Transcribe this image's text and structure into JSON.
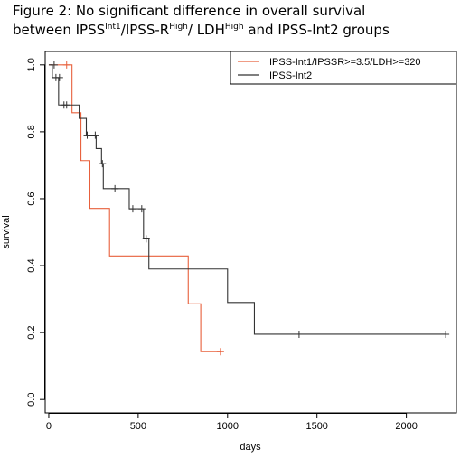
{
  "figure": {
    "title_line1": "Figure 2: No significant difference in overall survival",
    "title_line2": {
      "a": "between IPSS",
      "sup_a": "Int1",
      "b": "/IPSS-R",
      "sup_b": "High",
      "c": "/ LDH",
      "sup_c": "High",
      "d": " and IPSS-Int2 groups"
    }
  },
  "chart_data": {
    "type": "line",
    "subtype": "kaplan-meier step",
    "xlabel": "days",
    "ylabel": "survival",
    "xlim": [
      -20,
      2280
    ],
    "ylim": [
      -0.04,
      1.04
    ],
    "x_ticks": [
      0,
      500,
      1000,
      1500,
      2000
    ],
    "y_ticks": [
      0.0,
      0.2,
      0.4,
      0.6,
      0.8,
      1.0
    ],
    "legend_position": "top-right",
    "grid": false,
    "series": [
      {
        "name": "IPSS-Int1/IPSSR>=3.5/LDH>=320",
        "color": "#e8603c",
        "steps": [
          [
            0,
            1.0
          ],
          [
            130,
            0.857
          ],
          [
            180,
            0.714
          ],
          [
            230,
            0.571
          ],
          [
            340,
            0.429
          ],
          [
            780,
            0.286
          ],
          [
            850,
            0.143
          ],
          [
            960,
            0.143
          ]
        ],
        "censored": [
          [
            100,
            1.0
          ],
          [
            960,
            0.143
          ]
        ]
      },
      {
        "name": "IPSS-Int2",
        "color": "#333333",
        "steps": [
          [
            0,
            1.0
          ],
          [
            20,
            0.962
          ],
          [
            55,
            0.88
          ],
          [
            130,
            0.88
          ],
          [
            170,
            0.84
          ],
          [
            210,
            0.79
          ],
          [
            265,
            0.75
          ],
          [
            295,
            0.705
          ],
          [
            305,
            0.63
          ],
          [
            450,
            0.57
          ],
          [
            530,
            0.48
          ],
          [
            560,
            0.39
          ],
          [
            1000,
            0.29
          ],
          [
            1150,
            0.195
          ],
          [
            2220,
            0.195
          ]
        ],
        "censored": [
          [
            30,
            1.0
          ],
          [
            40,
            0.962
          ],
          [
            60,
            0.962
          ],
          [
            85,
            0.88
          ],
          [
            100,
            0.88
          ],
          [
            215,
            0.79
          ],
          [
            260,
            0.79
          ],
          [
            300,
            0.705
          ],
          [
            370,
            0.63
          ],
          [
            470,
            0.57
          ],
          [
            520,
            0.57
          ],
          [
            545,
            0.48
          ],
          [
            1400,
            0.195
          ],
          [
            2220,
            0.195
          ]
        ]
      }
    ]
  }
}
